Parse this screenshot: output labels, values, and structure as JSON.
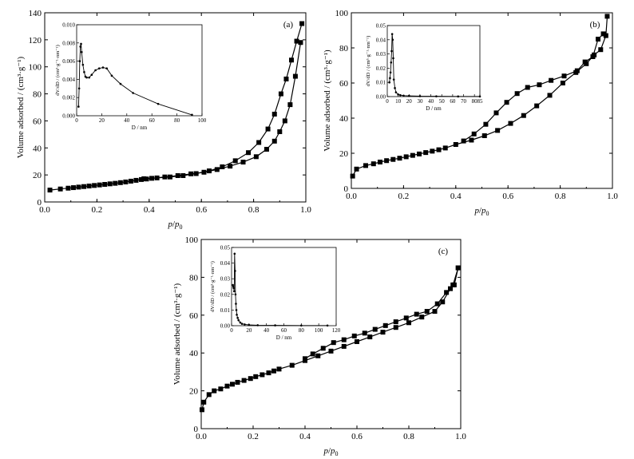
{
  "chart_data": [
    {
      "type": "scatter",
      "panel_label": "(a)",
      "xlabel": "p/p0",
      "ylabel": "Volume adsorbed / (cm³·g⁻¹)",
      "xlim": [
        0,
        1.0
      ],
      "ylim": [
        0,
        140
      ],
      "xticks": [
        "0.0",
        "0.2",
        "0.4",
        "0.6",
        "0.8",
        "1.0"
      ],
      "yticks": [
        "0",
        "20",
        "40",
        "60",
        "80",
        "100",
        "120",
        "140"
      ],
      "series": [
        {
          "x": [
            0.02,
            0.06,
            0.09,
            0.11,
            0.13,
            0.15,
            0.17,
            0.19,
            0.21,
            0.23,
            0.25,
            0.27,
            0.29,
            0.31,
            0.33,
            0.35,
            0.37,
            0.39,
            0.41,
            0.46,
            0.51,
            0.56,
            0.61,
            0.66,
            0.71,
            0.76,
            0.81,
            0.85,
            0.88,
            0.9,
            0.92,
            0.94,
            0.96,
            0.98
          ],
          "y": [
            8.8,
            9.6,
            10.2,
            10.6,
            11.0,
            11.4,
            11.8,
            12.2,
            12.6,
            13.0,
            13.4,
            13.8,
            14.3,
            14.8,
            15.4,
            16.0,
            16.6,
            17.0,
            17.5,
            18.5,
            19.5,
            20.8,
            22.0,
            24.0,
            26.5,
            29.5,
            33.5,
            39.0,
            45.0,
            52.0,
            60.0,
            72.0,
            93.0,
            118.0
          ]
        },
        {
          "x": [
            0.985,
            0.965,
            0.945,
            0.925,
            0.905,
            0.88,
            0.855,
            0.82,
            0.78,
            0.73,
            0.68,
            0.63,
            0.58,
            0.53,
            0.48,
            0.43,
            0.38
          ],
          "y": [
            132.0,
            119.0,
            105.0,
            91.0,
            80.0,
            65.0,
            54.0,
            44.0,
            36.5,
            30.5,
            26.0,
            23.0,
            21.0,
            19.5,
            18.5,
            17.8,
            17.2
          ]
        }
      ],
      "inset": {
        "xlabel": "D / nm",
        "ylabel": "dV/dD / (cm³·g⁻¹·nm⁻¹)",
        "xlim": [
          0,
          100
        ],
        "ylim": [
          0,
          0.01
        ],
        "xticks": [
          "0",
          "20",
          "40",
          "60",
          "80",
          "100"
        ],
        "yticks": [
          "0.000",
          "0.002",
          "0.004",
          "0.006",
          "0.008",
          "0.010"
        ],
        "x": [
          1.5,
          2.0,
          2.5,
          3.0,
          3.5,
          4.0,
          5.0,
          6.0,
          7.0,
          8.0,
          10.0,
          12.0,
          15.0,
          18.0,
          21.0,
          24.0,
          28.0,
          35.0,
          45.0,
          65.0,
          92.0
        ],
        "y": [
          0.001,
          0.003,
          0.006,
          0.0076,
          0.0079,
          0.007,
          0.0056,
          0.0048,
          0.0043,
          0.0042,
          0.0042,
          0.0045,
          0.005,
          0.0052,
          0.0053,
          0.0052,
          0.0044,
          0.0035,
          0.0025,
          0.0013,
          0.0001
        ]
      }
    },
    {
      "type": "scatter",
      "panel_label": "(b)",
      "xlabel": "p/p0",
      "ylabel": "Volume adsorbed / (cm³·g⁻¹)",
      "xlim": [
        0,
        1.0
      ],
      "ylim": [
        0,
        100
      ],
      "xticks": [
        "0.0",
        "0.2",
        "0.4",
        "0.6",
        "0.8",
        "1.0"
      ],
      "yticks": [
        "0",
        "20",
        "40",
        "60",
        "80",
        "100"
      ],
      "series": [
        {
          "x": [
            0.005,
            0.02,
            0.055,
            0.085,
            0.11,
            0.135,
            0.16,
            0.185,
            0.21,
            0.235,
            0.26,
            0.285,
            0.31,
            0.335,
            0.36,
            0.4,
            0.46,
            0.51,
            0.56,
            0.61,
            0.66,
            0.71,
            0.76,
            0.81,
            0.86,
            0.9,
            0.93,
            0.955,
            0.975,
            0.98
          ],
          "y": [
            7,
            11,
            13,
            14,
            15,
            15.8,
            16.5,
            17.2,
            18,
            18.8,
            19.6,
            20.4,
            21.2,
            22,
            23,
            25,
            27.5,
            30,
            33,
            37,
            41.5,
            47,
            53,
            60,
            66,
            71,
            76,
            79,
            87,
            98
          ]
        },
        {
          "x": [
            0.965,
            0.945,
            0.925,
            0.895,
            0.865,
            0.815,
            0.765,
            0.72,
            0.675,
            0.635,
            0.595,
            0.555,
            0.515,
            0.47,
            0.43
          ],
          "y": [
            88,
            85,
            75,
            72,
            67,
            64,
            61.5,
            59,
            57.5,
            54,
            49,
            43,
            36.5,
            31,
            27
          ]
        }
      ],
      "inset": {
        "xlabel": "D / nm",
        "ylabel": "dV/dD / (cm³·g⁻¹·nm⁻¹)",
        "xlim": [
          0,
          85
        ],
        "ylim": [
          0,
          0.05
        ],
        "xticks": [
          "0",
          "10",
          "20",
          "30",
          "40",
          "50",
          "60",
          "70",
          "80",
          "85"
        ],
        "yticks": [
          "0.00",
          "0.01",
          "0.02",
          "0.03",
          "0.04",
          "0.05"
        ],
        "x": [
          2.0,
          2.5,
          3.0,
          3.5,
          4.0,
          4.5,
          5.0,
          5.5,
          6.0,
          7.0,
          8.0,
          10.0,
          12.0,
          15.0,
          20.0,
          30.0,
          45.0,
          65.0,
          85.0
        ],
        "y": [
          0.01,
          0.013,
          0.017,
          0.024,
          0.032,
          0.044,
          0.04,
          0.027,
          0.012,
          0.006,
          0.003,
          0.0015,
          0.001,
          0.0007,
          0.0005,
          0.0003,
          0.0002,
          0.0001,
          0.0001
        ]
      }
    },
    {
      "type": "scatter",
      "panel_label": "(c)",
      "xlabel": "p/p0",
      "ylabel": "Volume adsorbed / (cm³·g⁻¹)",
      "xlim": [
        0,
        1.0
      ],
      "ylim": [
        0,
        100
      ],
      "xticks": [
        "0.0",
        "0.2",
        "0.4",
        "0.6",
        "0.8",
        "1.0"
      ],
      "yticks": [
        "0",
        "20",
        "40",
        "60",
        "80",
        "100"
      ],
      "series": [
        {
          "x": [
            0.003,
            0.01,
            0.03,
            0.05,
            0.075,
            0.1,
            0.12,
            0.14,
            0.165,
            0.19,
            0.21,
            0.235,
            0.26,
            0.28,
            0.3,
            0.35,
            0.4,
            0.45,
            0.5,
            0.55,
            0.6,
            0.65,
            0.7,
            0.75,
            0.8,
            0.85,
            0.9,
            0.93,
            0.96,
            0.975,
            0.99
          ],
          "y": [
            10,
            14,
            18,
            20,
            21,
            22.5,
            23.5,
            24.5,
            25.5,
            26.5,
            27.5,
            28.5,
            29.5,
            30.5,
            31.5,
            33.5,
            36,
            38.5,
            41,
            43.5,
            46,
            48.5,
            51,
            53.5,
            56,
            59,
            62,
            67,
            74,
            76,
            85
          ]
        },
        {
          "x": [
            0.99,
            0.97,
            0.945,
            0.91,
            0.87,
            0.83,
            0.79,
            0.75,
            0.71,
            0.67,
            0.63,
            0.59,
            0.55,
            0.51,
            0.47,
            0.43,
            0.4
          ],
          "y": [
            85,
            76,
            72,
            66,
            62,
            60.5,
            58.5,
            56.5,
            54.5,
            52.5,
            50.5,
            49,
            47,
            45.5,
            42.5,
            39.5,
            37
          ]
        }
      ],
      "inset": {
        "xlabel": "D / nm",
        "ylabel": "dV/dD / (cm³·g⁻¹·nm⁻¹)",
        "xlim": [
          0,
          120
        ],
        "ylim": [
          0,
          0.05
        ],
        "xticks": [
          "0",
          "20",
          "40",
          "60",
          "80",
          "100",
          "120"
        ],
        "yticks": [
          "0.00",
          "0.01",
          "0.02",
          "0.03",
          "0.04",
          "0.05"
        ],
        "x": [
          1.5,
          2.0,
          2.5,
          3.0,
          3.5,
          4.0,
          4.5,
          5.0,
          5.5,
          6.0,
          7.0,
          8.0,
          10.0,
          12.0,
          15.0,
          20.0,
          30.0,
          50.0,
          80.0,
          110.0
        ],
        "y": [
          0.026,
          0.025,
          0.024,
          0.022,
          0.046,
          0.035,
          0.02,
          0.014,
          0.01,
          0.007,
          0.005,
          0.0035,
          0.002,
          0.0012,
          0.0008,
          0.0005,
          0.0003,
          0.0002,
          0.0001,
          0.0001
        ]
      }
    }
  ]
}
